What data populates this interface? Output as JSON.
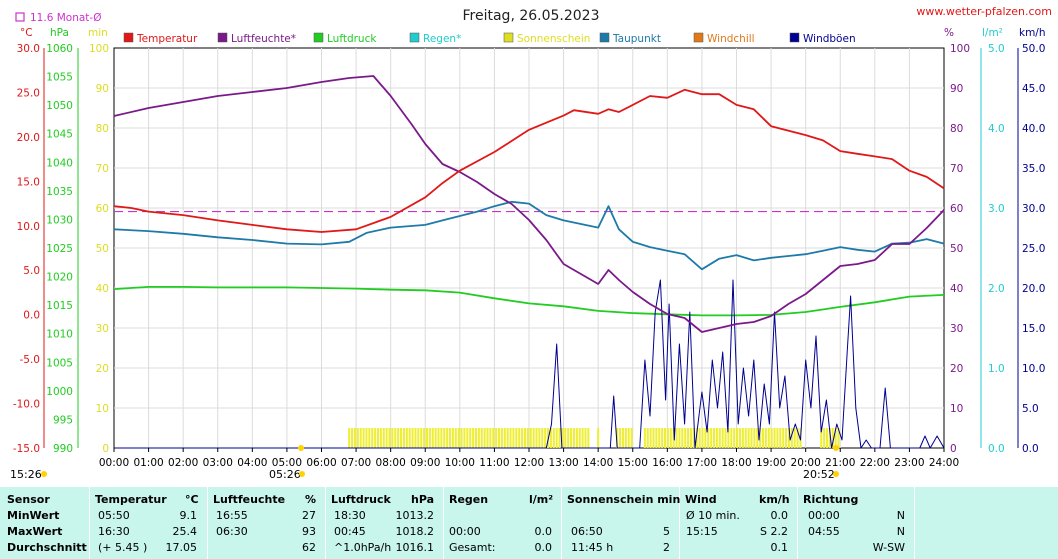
{
  "title": "Freitag, 26.05.2023",
  "website": "www.wetter-pfalzen.com",
  "monthly_avg_label": "11.6 Monat-Ø",
  "units": {
    "temp": "°C",
    "pressure": "hPa",
    "minutes": "min",
    "percent": "%",
    "rain": "l/m²",
    "speed": "km/h"
  },
  "legend": [
    {
      "label": "Temperatur",
      "color": "#e01818"
    },
    {
      "label": "Luftfeuchte*",
      "color": "#7a1a8a"
    },
    {
      "label": "Luftdruck",
      "color": "#22cc22"
    },
    {
      "label": "Regen*",
      "color": "#22cccc"
    },
    {
      "label": "Sonnenschein",
      "color": "#dddd22"
    },
    {
      "label": "Taupunkt",
      "color": "#1e7aa8"
    },
    {
      "label": "Windchill",
      "color": "#e07a18"
    },
    {
      "label": "Windböen",
      "color": "#000090"
    }
  ],
  "axes": {
    "temp": [
      "30.0",
      "25.0",
      "20.0",
      "15.0",
      "10.0",
      "5.0",
      "0.0",
      "-5.0",
      "-10.0",
      "-15.0"
    ],
    "pressure": [
      "1060",
      "1055",
      "1050",
      "1045",
      "1040",
      "1035",
      "1030",
      "1025",
      "1020",
      "1015",
      "1010",
      "1005",
      "1000",
      "995",
      "990"
    ],
    "minutes": [
      "100",
      "90",
      "80",
      "70",
      "60",
      "50",
      "40",
      "30",
      "20",
      "10",
      "0"
    ],
    "humidity": [
      "100",
      "90",
      "80",
      "70",
      "60",
      "50",
      "40",
      "30",
      "20",
      "10",
      "0"
    ],
    "rain": [
      "5.0",
      "4.0",
      "3.0",
      "2.0",
      "1.0",
      "0.0"
    ],
    "wind": [
      "50.0",
      "45.0",
      "40.0",
      "35.0",
      "30.0",
      "25.0",
      "20.0",
      "15.0",
      "10.0",
      "5.0",
      "0.0"
    ],
    "time": [
      "00:00",
      "01:00",
      "02:00",
      "03:00",
      "04:00",
      "05:00",
      "06:00",
      "07:00",
      "08:00",
      "09:00",
      "10:00",
      "11:00",
      "12:00",
      "13:00",
      "14:00",
      "15:00",
      "16:00",
      "17:00",
      "18:00",
      "19:00",
      "20:00",
      "21:00",
      "22:00",
      "23:00",
      "24:00"
    ]
  },
  "sun": {
    "left": "15:26",
    "sunrise": "05:26",
    "sunset": "20:52"
  },
  "chart_data": {
    "type": "line",
    "x_range": [
      "00:00",
      "24:00"
    ],
    "monthly_avg_temp": 11.6,
    "series": [
      {
        "name": "Temperatur",
        "axis": "°C",
        "color": "#e01818",
        "points": [
          [
            0,
            12.2
          ],
          [
            0.5,
            12
          ],
          [
            1,
            11.6
          ],
          [
            2,
            11.2
          ],
          [
            3,
            10.6
          ],
          [
            4,
            10.1
          ],
          [
            5,
            9.6
          ],
          [
            6,
            9.3
          ],
          [
            7,
            9.6
          ],
          [
            8,
            11
          ],
          [
            9,
            13.2
          ],
          [
            9.5,
            14.8
          ],
          [
            10,
            16.2
          ],
          [
            11,
            18.3
          ],
          [
            12,
            20.8
          ],
          [
            13,
            22.4
          ],
          [
            13.3,
            23
          ],
          [
            14,
            22.6
          ],
          [
            14.3,
            23.1
          ],
          [
            14.6,
            22.8
          ],
          [
            15,
            23.6
          ],
          [
            15.5,
            24.6
          ],
          [
            16,
            24.4
          ],
          [
            16.5,
            25.3
          ],
          [
            17,
            24.8
          ],
          [
            17.5,
            24.8
          ],
          [
            18,
            23.6
          ],
          [
            18.5,
            23.1
          ],
          [
            19,
            21.2
          ],
          [
            20,
            20.2
          ],
          [
            20.5,
            19.6
          ],
          [
            21,
            18.4
          ],
          [
            21.5,
            18.1
          ],
          [
            22,
            17.8
          ],
          [
            22.5,
            17.5
          ],
          [
            23,
            16.2
          ],
          [
            23.5,
            15.5
          ],
          [
            24,
            14.2
          ]
        ]
      },
      {
        "name": "Luftfeuchte*",
        "axis": "%",
        "color": "#7a1a8a",
        "points": [
          [
            0,
            83
          ],
          [
            1,
            85
          ],
          [
            2,
            86.5
          ],
          [
            3,
            88
          ],
          [
            4,
            89
          ],
          [
            5,
            90
          ],
          [
            6,
            91.5
          ],
          [
            6.8,
            92.5
          ],
          [
            7.5,
            93
          ],
          [
            8,
            88
          ],
          [
            8.6,
            81
          ],
          [
            9,
            76
          ],
          [
            9.5,
            71
          ],
          [
            10,
            69
          ],
          [
            10.5,
            66.5
          ],
          [
            11,
            63.5
          ],
          [
            11.5,
            61
          ],
          [
            12,
            57
          ],
          [
            12.5,
            52
          ],
          [
            13,
            46
          ],
          [
            13.5,
            43.5
          ],
          [
            14,
            41
          ],
          [
            14.3,
            44.5
          ],
          [
            14.6,
            42
          ],
          [
            15,
            39
          ],
          [
            15.5,
            36
          ],
          [
            16,
            33.5
          ],
          [
            16.5,
            32.5
          ],
          [
            17,
            29
          ],
          [
            17.5,
            30
          ],
          [
            18,
            31
          ],
          [
            18.5,
            31.5
          ],
          [
            19,
            33
          ],
          [
            19.5,
            36
          ],
          [
            20,
            38.5
          ],
          [
            20.5,
            42
          ],
          [
            21,
            45.5
          ],
          [
            21.5,
            46
          ],
          [
            22,
            47
          ],
          [
            22.5,
            51
          ],
          [
            23,
            51
          ],
          [
            23.5,
            55
          ],
          [
            24,
            59.5
          ]
        ]
      },
      {
        "name": "Taupunkt",
        "axis": "°C",
        "color": "#1e7aa8",
        "points": [
          [
            0,
            9.6
          ],
          [
            1,
            9.4
          ],
          [
            2,
            9.1
          ],
          [
            3,
            8.7
          ],
          [
            4,
            8.4
          ],
          [
            5,
            8
          ],
          [
            6,
            7.9
          ],
          [
            6.8,
            8.2
          ],
          [
            7.3,
            9.2
          ],
          [
            8,
            9.8
          ],
          [
            9,
            10.1
          ],
          [
            9.5,
            10.6
          ],
          [
            10,
            11.1
          ],
          [
            10.5,
            11.6
          ],
          [
            11,
            12.2
          ],
          [
            11.5,
            12.7
          ],
          [
            12,
            12.5
          ],
          [
            12.5,
            11.2
          ],
          [
            13,
            10.6
          ],
          [
            13.5,
            10.2
          ],
          [
            14,
            9.8
          ],
          [
            14.3,
            12.2
          ],
          [
            14.6,
            9.6
          ],
          [
            15,
            8.2
          ],
          [
            15.5,
            7.6
          ],
          [
            16,
            7.2
          ],
          [
            16.5,
            6.8
          ],
          [
            17,
            5.1
          ],
          [
            17.5,
            6.3
          ],
          [
            18,
            6.7
          ],
          [
            18.5,
            6.1
          ],
          [
            19,
            6.4
          ],
          [
            19.5,
            6.6
          ],
          [
            20,
            6.8
          ],
          [
            20.5,
            7.2
          ],
          [
            21,
            7.6
          ],
          [
            21.5,
            7.3
          ],
          [
            22,
            7.1
          ],
          [
            22.5,
            8
          ],
          [
            23,
            8.1
          ],
          [
            23.5,
            8.5
          ],
          [
            24,
            8
          ]
        ]
      },
      {
        "name": "Luftdruck",
        "axis": "hPa",
        "color": "#22cc22",
        "points": [
          [
            0,
            1017.8
          ],
          [
            1,
            1018.2
          ],
          [
            2,
            1018.2
          ],
          [
            3,
            1018.1
          ],
          [
            4,
            1018.1
          ],
          [
            5,
            1018.1
          ],
          [
            6,
            1018
          ],
          [
            7,
            1017.9
          ],
          [
            8,
            1017.7
          ],
          [
            9,
            1017.6
          ],
          [
            10,
            1017.2
          ],
          [
            11,
            1016.2
          ],
          [
            12,
            1015.3
          ],
          [
            13,
            1014.8
          ],
          [
            14,
            1014
          ],
          [
            15,
            1013.6
          ],
          [
            16,
            1013.4
          ],
          [
            17,
            1013.2
          ],
          [
            18,
            1013.2
          ],
          [
            19,
            1013.3
          ],
          [
            20,
            1013.8
          ],
          [
            21,
            1014.7
          ],
          [
            22,
            1015.5
          ],
          [
            23,
            1016.5
          ],
          [
            24,
            1016.8
          ]
        ]
      },
      {
        "name": "Windböen",
        "axis": "km/h",
        "color": "#000090",
        "points": [
          [
            0,
            0
          ],
          [
            12.5,
            0
          ],
          [
            12.65,
            3
          ],
          [
            12.8,
            13
          ],
          [
            12.95,
            0
          ],
          [
            14.35,
            0
          ],
          [
            14.45,
            6.5
          ],
          [
            14.55,
            0
          ],
          [
            15.2,
            0
          ],
          [
            15.35,
            11
          ],
          [
            15.5,
            4
          ],
          [
            15.65,
            17
          ],
          [
            15.8,
            21
          ],
          [
            15.95,
            6
          ],
          [
            16.05,
            18
          ],
          [
            16.2,
            1
          ],
          [
            16.35,
            13
          ],
          [
            16.5,
            3
          ],
          [
            16.65,
            17
          ],
          [
            16.8,
            0
          ],
          [
            17,
            7
          ],
          [
            17.15,
            2
          ],
          [
            17.3,
            11
          ],
          [
            17.45,
            5
          ],
          [
            17.6,
            12
          ],
          [
            17.75,
            2
          ],
          [
            17.9,
            21
          ],
          [
            18.05,
            3
          ],
          [
            18.2,
            10
          ],
          [
            18.35,
            4
          ],
          [
            18.5,
            11
          ],
          [
            18.65,
            1
          ],
          [
            18.8,
            8
          ],
          [
            18.95,
            3
          ],
          [
            19.1,
            17
          ],
          [
            19.25,
            5
          ],
          [
            19.4,
            9
          ],
          [
            19.55,
            1
          ],
          [
            19.7,
            3
          ],
          [
            19.85,
            1
          ],
          [
            20,
            11
          ],
          [
            20.15,
            5
          ],
          [
            20.3,
            14
          ],
          [
            20.45,
            2
          ],
          [
            20.6,
            6
          ],
          [
            20.75,
            0
          ],
          [
            20.9,
            3
          ],
          [
            21.05,
            1
          ],
          [
            21.2,
            12
          ],
          [
            21.3,
            19
          ],
          [
            21.45,
            5
          ],
          [
            21.6,
            0
          ],
          [
            21.75,
            1
          ],
          [
            21.9,
            0
          ],
          [
            22.15,
            0
          ],
          [
            22.3,
            7.5
          ],
          [
            22.45,
            0
          ],
          [
            23.3,
            0
          ],
          [
            23.45,
            1.5
          ],
          [
            23.6,
            0
          ],
          [
            23.8,
            1.5
          ],
          [
            24,
            0
          ]
        ]
      }
    ],
    "sunshine_intervals": [
      [
        6.8,
        13.75
      ],
      [
        14.0,
        14.05
      ],
      [
        14.55,
        15.0
      ],
      [
        15.35,
        19.9
      ],
      [
        20.45,
        21.0
      ]
    ],
    "sunshine_value_min": 5
  },
  "table": {
    "headers": {
      "sensor": "Sensor",
      "temp": "Temperatur",
      "temp_unit": "°C",
      "hum": "Luftfeuchte",
      "hum_unit": "%",
      "press": "Luftdruck",
      "press_unit": "hPa",
      "rain": "Regen",
      "rain_unit": "l/m²",
      "sun": "Sonnenschein min",
      "wind": "Wind",
      "wind_unit": "km/h",
      "dir": "Richtung"
    },
    "rows": [
      {
        "label": "MinWert",
        "temp_t": "05:50",
        "temp_v": "9.1",
        "hum_t": "16:55",
        "hum_v": "27",
        "press_t": "18:30",
        "press_v": "1013.2",
        "rain_t": "",
        "rain_v": "",
        "sun_t": "",
        "sun_v": "",
        "wind_t": "Ø 10 min.",
        "wind_v": "0.0",
        "dir_t": "00:00",
        "dir_v": "N"
      },
      {
        "label": "MaxWert",
        "temp_t": "16:30",
        "temp_v": "25.4",
        "hum_t": "06:30",
        "hum_v": "93",
        "press_t": "00:45",
        "press_v": "1018.2",
        "rain_t": "00:00",
        "rain_v": "0.0",
        "sun_t": "06:50",
        "sun_v": "5",
        "wind_t": "15:15",
        "wind_v": "S 2.2",
        "dir_t": "04:55",
        "dir_v": "N"
      },
      {
        "label": "Durchschnitt",
        "temp_t": "(+ 5.45 )",
        "temp_v": "17.05",
        "hum_t": "",
        "hum_v": "62",
        "press_t": "^1.0hPa/h",
        "press_v": "1016.1",
        "rain_t": "Gesamt:",
        "rain_v": "0.0",
        "sun_t": "11:45 h",
        "sun_v": "2",
        "wind_t": "",
        "wind_v": "0.1",
        "dir_t": "",
        "dir_v": "W-SW"
      }
    ]
  }
}
